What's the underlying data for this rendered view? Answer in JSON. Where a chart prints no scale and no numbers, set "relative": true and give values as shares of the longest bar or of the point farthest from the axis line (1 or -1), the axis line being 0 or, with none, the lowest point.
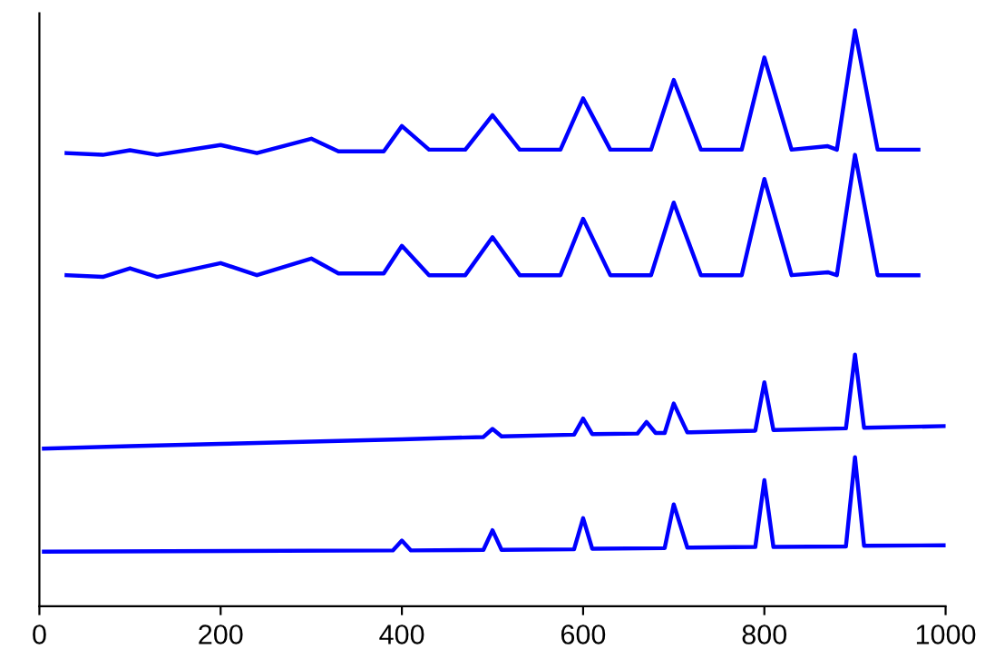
{
  "chart_data": {
    "type": "line",
    "relative": true,
    "tick_labels": "x",
    "grid": false,
    "xlim": [
      0,
      1000
    ],
    "xticks": [
      0,
      200,
      400,
      600,
      800,
      1000
    ],
    "series": [
      {
        "color": "#0000ff",
        "x": [
          30,
          70,
          100,
          130,
          200,
          240,
          300,
          330,
          380,
          400,
          430,
          470,
          500,
          530,
          575,
          600,
          630,
          675,
          700,
          730,
          775,
          800,
          830,
          870,
          880,
          900,
          925,
          970
        ],
        "values": [
          0.787,
          0.784,
          0.792,
          0.784,
          0.801,
          0.787,
          0.812,
          0.79,
          0.79,
          0.834,
          0.793,
          0.793,
          0.853,
          0.793,
          0.793,
          0.882,
          0.793,
          0.793,
          0.914,
          0.793,
          0.793,
          0.953,
          0.793,
          0.799,
          0.793,
          1.0,
          0.793,
          0.793
        ]
      },
      {
        "color": "#0000ff",
        "x": [
          30,
          70,
          100,
          130,
          200,
          240,
          300,
          330,
          380,
          400,
          430,
          470,
          500,
          530,
          575,
          600,
          630,
          675,
          700,
          730,
          775,
          800,
          830,
          870,
          880,
          900,
          925,
          970
        ],
        "values": [
          0.575,
          0.572,
          0.587,
          0.572,
          0.596,
          0.575,
          0.604,
          0.578,
          0.578,
          0.626,
          0.575,
          0.575,
          0.641,
          0.575,
          0.575,
          0.673,
          0.575,
          0.575,
          0.701,
          0.575,
          0.575,
          0.742,
          0.575,
          0.58,
          0.575,
          0.784,
          0.575,
          0.575
        ]
      },
      {
        "color": "#0000ff",
        "x": [
          5,
          100,
          200,
          300,
          400,
          490,
          500,
          510,
          590,
          600,
          610,
          660,
          670,
          680,
          690,
          700,
          715,
          790,
          800,
          810,
          890,
          900,
          910,
          1000
        ],
        "values": [
          0.274,
          0.278,
          0.282,
          0.286,
          0.29,
          0.294,
          0.308,
          0.295,
          0.298,
          0.326,
          0.299,
          0.3,
          0.32,
          0.301,
          0.301,
          0.352,
          0.302,
          0.305,
          0.389,
          0.306,
          0.309,
          0.437,
          0.31,
          0.313
        ]
      },
      {
        "color": "#0000ff",
        "x": [
          5,
          390,
          400,
          410,
          490,
          500,
          510,
          590,
          600,
          610,
          690,
          700,
          715,
          790,
          800,
          810,
          890,
          900,
          910,
          1000
        ],
        "values": [
          0.095,
          0.097,
          0.114,
          0.097,
          0.098,
          0.132,
          0.098,
          0.099,
          0.153,
          0.1,
          0.101,
          0.177,
          0.102,
          0.103,
          0.219,
          0.103,
          0.104,
          0.259,
          0.105,
          0.106
        ]
      }
    ]
  }
}
